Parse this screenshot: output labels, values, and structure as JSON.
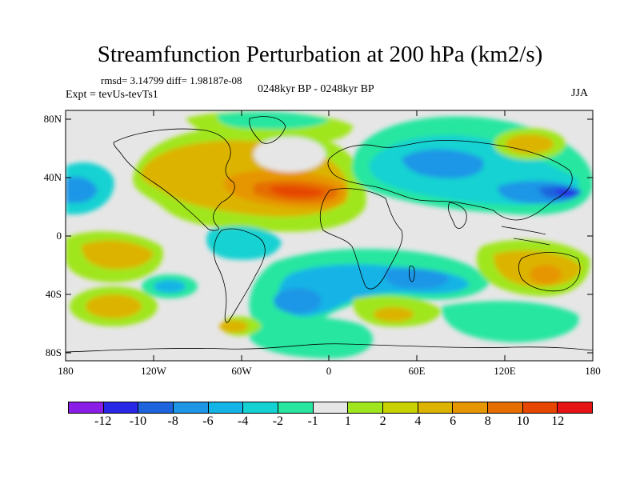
{
  "title": "Streamfunction Perturbation at 200 hPa (km2/s)",
  "rmsd_text": "rmsd= 3.14799 diff= 1.98187e-08",
  "expt_text": "Expt = tevUs-tevTs1",
  "period_text": "0248kyr BP - 0248kyr BP",
  "season_text": "JJA",
  "map": {
    "y_ticks": [
      "80N",
      "40N",
      "0",
      "40S",
      "80S"
    ],
    "x_ticks": [
      "180",
      "120W",
      "60W",
      "0",
      "60E",
      "120E",
      "180"
    ]
  },
  "colorbar": {
    "colors": [
      "#8a1ee6",
      "#2828e6",
      "#1e64dc",
      "#1e96e6",
      "#14b4e6",
      "#14d2d2",
      "#28e6a0",
      "#e6e6e6",
      "#a0e61e",
      "#c8d200",
      "#dcb400",
      "#e69600",
      "#e66e00",
      "#e64600",
      "#e61414"
    ],
    "labels": [
      "-12",
      "-10",
      "-8",
      "-6",
      "-4",
      "-2",
      "-1",
      "1",
      "2",
      "4",
      "6",
      "8",
      "10",
      "12"
    ]
  }
}
